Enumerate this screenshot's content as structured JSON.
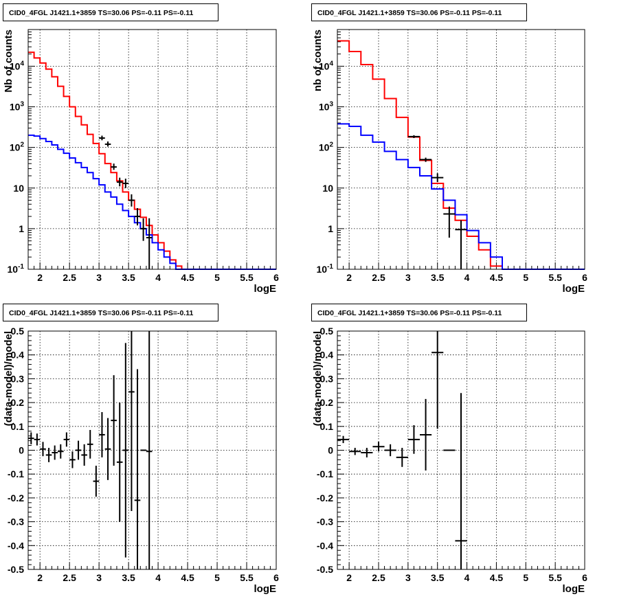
{
  "chart_data": [
    {
      "type": "histogram",
      "title": "CID0_4FGL J1421.1+3859 TS=30.06 PS=-0.11 PS=-0.11",
      "xlabel": "logE",
      "ylabel": "Nb of counts",
      "xlim": [
        1.8,
        6
      ],
      "ylim": [
        0.1,
        80000
      ],
      "yscale": "log",
      "grid": true,
      "xticks": [
        "2",
        "2.5",
        "3",
        "3.5",
        "4",
        "4.5",
        "5",
        "5.5",
        "6"
      ],
      "yticks": [
        "10^-1",
        "1",
        "10",
        "10^2",
        "10^3",
        "10^4"
      ],
      "series": [
        {
          "role": "model-total",
          "color": "#ff0000",
          "bin_edges": [
            1.8,
            1.9,
            2.0,
            2.1,
            2.2,
            2.3,
            2.4,
            2.5,
            2.6,
            2.7,
            2.8,
            2.9,
            3.0,
            3.1,
            3.2,
            3.3,
            3.4,
            3.5,
            3.6,
            3.7,
            3.8,
            3.9,
            4.0,
            4.1,
            4.2,
            4.3,
            4.4,
            4.5,
            6.0
          ],
          "values": [
            22000,
            16000,
            12000,
            8500,
            5500,
            3200,
            1800,
            1000,
            580,
            360,
            210,
            125,
            70,
            40,
            24,
            15,
            8,
            5,
            3,
            1.9,
            1.2,
            0.7,
            0.45,
            0.28,
            0.17,
            0.12,
            0.1,
            0.1
          ]
        },
        {
          "role": "model-background",
          "color": "#0000ff",
          "bin_edges": [
            1.8,
            1.9,
            2.0,
            2.1,
            2.2,
            2.3,
            2.4,
            2.5,
            2.6,
            2.7,
            2.8,
            2.9,
            3.0,
            3.1,
            3.2,
            3.3,
            3.4,
            3.5,
            3.6,
            3.7,
            3.8,
            3.9,
            4.0,
            4.1,
            4.2,
            4.3,
            4.4,
            4.5,
            6.0
          ],
          "values": [
            200,
            190,
            165,
            140,
            115,
            90,
            72,
            55,
            42,
            32,
            24,
            17,
            12,
            8,
            6,
            4,
            2.8,
            2,
            1.4,
            1,
            0.7,
            0.45,
            0.3,
            0.2,
            0.14,
            0.1,
            0.1,
            0.1
          ]
        },
        {
          "role": "data",
          "color": "#000000",
          "x": [
            3.05,
            3.15,
            3.25,
            3.35,
            3.45,
            3.55,
            3.65,
            3.75,
            3.85
          ],
          "xerr": [
            0.05,
            0.05,
            0.05,
            0.05,
            0.05,
            0.05,
            0.05,
            0.05,
            0.05
          ],
          "y": [
            170,
            120,
            33,
            14,
            13,
            5,
            2,
            1,
            0.6
          ],
          "ylo": [
            150,
            105,
            28,
            11,
            10,
            3.5,
            1.2,
            0.5,
            0.1
          ],
          "yhi": [
            195,
            140,
            40,
            18,
            17,
            7,
            3.2,
            1.8,
            1.8
          ]
        }
      ]
    },
    {
      "type": "histogram",
      "title": "CID0_4FGL J1421.1+3859 TS=30.06 PS=-0.11 PS=-0.11",
      "xlabel": "logE",
      "ylabel": "nb of counts",
      "xlim": [
        1.8,
        6
      ],
      "ylim": [
        0.1,
        80000
      ],
      "yscale": "log",
      "grid": true,
      "xticks": [
        "2",
        "2.5",
        "3",
        "3.5",
        "4",
        "4.5",
        "5",
        "5.5",
        "6"
      ],
      "yticks": [
        "10^-1",
        "1",
        "10",
        "10^2",
        "10^3",
        "10^4"
      ],
      "series": [
        {
          "role": "model-total",
          "color": "#ff0000",
          "bin_edges": [
            1.8,
            2.0,
            2.2,
            2.4,
            2.6,
            2.8,
            3.0,
            3.2,
            3.4,
            3.6,
            3.8,
            4.0,
            4.2,
            4.4,
            4.6,
            6.0
          ],
          "values": [
            42000,
            23000,
            11000,
            4800,
            1600,
            550,
            180,
            48,
            13,
            3.2,
            1.6,
            0.65,
            0.3,
            0.12,
            0.1
          ]
        },
        {
          "role": "model-background",
          "color": "#0000ff",
          "bin_edges": [
            1.8,
            2.0,
            2.2,
            2.4,
            2.6,
            2.8,
            3.0,
            3.2,
            3.4,
            3.6,
            3.8,
            4.0,
            4.2,
            4.4,
            4.6,
            6.0
          ],
          "values": [
            380,
            330,
            200,
            135,
            80,
            50,
            32,
            20,
            9.5,
            5,
            2.2,
            0.9,
            0.45,
            0.2,
            0.1
          ]
        },
        {
          "role": "data",
          "color": "#000000",
          "x": [
            3.1,
            3.3,
            3.5,
            3.7,
            3.9
          ],
          "xerr": [
            0.1,
            0.1,
            0.1,
            0.1,
            0.1
          ],
          "y": [
            185,
            50,
            18,
            2.3,
            0.95
          ],
          "ylo": [
            170,
            44,
            14,
            0.6,
            0.1
          ],
          "yhi": [
            200,
            56,
            23,
            3.5,
            1.6
          ]
        }
      ]
    },
    {
      "type": "scatter",
      "title": "CID0_4FGL J1421.1+3859 TS=30.06 PS=-0.11 PS=-0.11",
      "xlabel": "logE",
      "ylabel": "(data-model)/model",
      "xlim": [
        1.8,
        6
      ],
      "ylim": [
        -0.5,
        0.5
      ],
      "grid": true,
      "xticks": [
        "2",
        "2.5",
        "3",
        "3.5",
        "4",
        "4.5",
        "5",
        "5.5",
        "6"
      ],
      "yticks": [
        "-0.5",
        "-0.4",
        "-0.3",
        "-0.2",
        "-0.1",
        "0",
        "0.1",
        "0.2",
        "0.3",
        "0.4",
        "0.5"
      ],
      "series": [
        {
          "role": "residuals",
          "color": "#000000",
          "x": [
            1.85,
            1.95,
            2.05,
            2.15,
            2.25,
            2.35,
            2.45,
            2.55,
            2.65,
            2.75,
            2.85,
            2.95,
            3.05,
            3.15,
            3.25,
            3.35,
            3.45,
            3.55,
            3.65,
            3.75,
            3.85
          ],
          "xerr": [
            0.05,
            0.05,
            0.05,
            0.05,
            0.05,
            0.05,
            0.05,
            0.05,
            0.05,
            0.05,
            0.05,
            0.05,
            0.05,
            0.05,
            0.05,
            0.05,
            0.05,
            0.05,
            0.05,
            0.05,
            0.05
          ],
          "y": [
            0.05,
            0.045,
            0.005,
            -0.02,
            -0.01,
            -0.005,
            0.045,
            -0.04,
            0.0,
            -0.02,
            0.025,
            -0.13,
            0.065,
            0.005,
            0.125,
            -0.05,
            0.0,
            0.245,
            -0.21,
            0.0,
            -0.005
          ],
          "yerr": [
            0.025,
            0.025,
            0.03,
            0.03,
            0.03,
            0.03,
            0.03,
            0.035,
            0.04,
            0.045,
            0.06,
            0.065,
            0.095,
            0.13,
            0.19,
            0.25,
            0.45,
            0.5,
            0.55,
            0.0,
            1.0
          ]
        }
      ]
    },
    {
      "type": "scatter",
      "title": "CID0_4FGL J1421.1+3859 TS=30.06 PS=-0.11 PS=-0.11",
      "xlabel": "logE",
      "ylabel": "(data-model)/model",
      "xlim": [
        1.8,
        6
      ],
      "ylim": [
        -0.5,
        0.5
      ],
      "grid": true,
      "xticks": [
        "2",
        "2.5",
        "3",
        "3.5",
        "4",
        "4.5",
        "5",
        "5.5",
        "6"
      ],
      "yticks": [
        "-0.5",
        "-0.4",
        "-0.3",
        "-0.2",
        "-0.1",
        "0",
        "0.1",
        "0.2",
        "0.3",
        "0.4",
        "0.5"
      ],
      "series": [
        {
          "role": "residuals",
          "color": "#000000",
          "x": [
            1.9,
            2.1,
            2.3,
            2.5,
            2.7,
            2.9,
            3.1,
            3.3,
            3.5,
            3.7,
            3.9
          ],
          "xerr": [
            0.1,
            0.1,
            0.1,
            0.1,
            0.1,
            0.1,
            0.1,
            0.1,
            0.1,
            0.1,
            0.1
          ],
          "y": [
            0.045,
            -0.005,
            -0.01,
            0.015,
            0.0,
            -0.03,
            0.045,
            0.065,
            0.41,
            0.0,
            -0.38
          ],
          "yerr": [
            0.015,
            0.015,
            0.02,
            0.02,
            0.025,
            0.04,
            0.06,
            0.15,
            0.32,
            0.0,
            0.62
          ]
        }
      ]
    }
  ]
}
